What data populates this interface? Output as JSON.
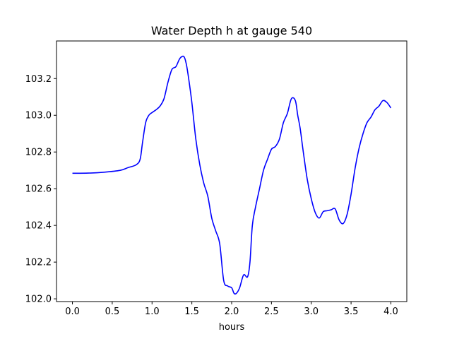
{
  "chart_data": {
    "type": "line",
    "title": "Water Depth h at gauge 540",
    "xlabel": "hours",
    "ylabel": "",
    "xlim": [
      -0.2,
      4.2
    ],
    "ylim": [
      101.985,
      103.405
    ],
    "x_ticks": [
      0.0,
      0.5,
      1.0,
      1.5,
      2.0,
      2.5,
      3.0,
      3.5,
      4.0
    ],
    "x_tick_labels": [
      "0.0",
      "0.5",
      "1.0",
      "1.5",
      "2.0",
      "2.5",
      "3.0",
      "3.5",
      "4.0"
    ],
    "y_ticks": [
      102.0,
      102.2,
      102.4,
      102.6,
      102.8,
      103.0,
      103.2
    ],
    "y_tick_labels": [
      "102.0",
      "102.2",
      "102.4",
      "102.6",
      "102.8",
      "103.0",
      "103.2"
    ],
    "grid": false,
    "legend": "none",
    "series": [
      {
        "color": "#0000ff",
        "x": [
          0.0,
          0.2,
          0.4,
          0.6,
          0.7,
          0.8,
          0.85,
          0.88,
          0.92,
          0.96,
          1.0,
          1.05,
          1.1,
          1.15,
          1.2,
          1.25,
          1.3,
          1.35,
          1.4,
          1.43,
          1.46,
          1.5,
          1.55,
          1.6,
          1.65,
          1.7,
          1.75,
          1.8,
          1.85,
          1.9,
          1.95,
          2.0,
          2.03,
          2.06,
          2.1,
          2.15,
          2.2,
          2.23,
          2.26,
          2.3,
          2.35,
          2.4,
          2.45,
          2.5,
          2.55,
          2.6,
          2.65,
          2.7,
          2.75,
          2.8,
          2.83,
          2.86,
          2.9,
          2.95,
          3.0,
          3.05,
          3.1,
          3.15,
          3.2,
          3.25,
          3.3,
          3.35,
          3.4,
          3.45,
          3.5,
          3.55,
          3.6,
          3.65,
          3.7,
          3.75,
          3.8,
          3.85,
          3.9,
          3.95,
          4.0
        ],
        "y": [
          102.684,
          102.685,
          102.69,
          102.7,
          102.715,
          102.73,
          102.76,
          102.85,
          102.96,
          103.0,
          103.015,
          103.03,
          103.05,
          103.09,
          103.18,
          103.25,
          103.265,
          103.31,
          103.32,
          103.28,
          103.2,
          103.07,
          102.87,
          102.73,
          102.63,
          102.56,
          102.44,
          102.37,
          102.3,
          102.1,
          102.07,
          102.06,
          102.03,
          102.03,
          102.06,
          102.13,
          102.12,
          102.2,
          102.4,
          102.5,
          102.6,
          102.7,
          102.76,
          102.815,
          102.83,
          102.87,
          102.96,
          103.01,
          103.09,
          103.08,
          103.0,
          102.93,
          102.8,
          102.65,
          102.545,
          102.47,
          102.44,
          102.475,
          102.48,
          102.485,
          102.49,
          102.43,
          102.41,
          102.46,
          102.57,
          102.71,
          102.82,
          102.9,
          102.96,
          102.99,
          103.03,
          103.05,
          103.08,
          103.07,
          103.04
        ]
      }
    ]
  }
}
